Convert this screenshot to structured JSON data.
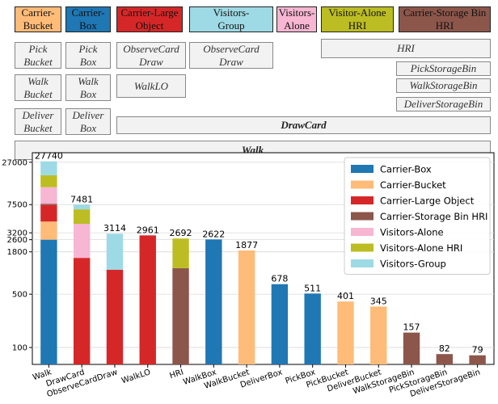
{
  "diagram": {
    "headers": [
      {
        "id": "carrier-bucket",
        "label": "Carrier-\nBucket",
        "color": "#ffbb78"
      },
      {
        "id": "carrier-box",
        "label": "Carrier-\nBox",
        "color": "#1f77b4"
      },
      {
        "id": "carrier-large-object",
        "label": "Carrier-Large\nObject",
        "color": "#d62728"
      },
      {
        "id": "visitors-group",
        "label": "Visitors-\nGroup",
        "color": "#9edae5"
      },
      {
        "id": "visitors-alone",
        "label": "Visitors-\nAlone",
        "color": "#f7b6d2"
      },
      {
        "id": "visitor-alone-hri",
        "label": "Visitor-Alone\nHRI",
        "color": "#bcbd22"
      },
      {
        "id": "carrier-storage-bin-hri",
        "label": "Carrier-Storage Bin\nHRI",
        "color": "#8c564b"
      }
    ],
    "tasks": [
      {
        "id": "pick-bucket",
        "label": "Pick\nBucket",
        "bold": false
      },
      {
        "id": "pick-box",
        "label": "Pick\nBox",
        "bold": false
      },
      {
        "id": "observecard-draw-1",
        "label": "ObserveCard\nDraw",
        "bold": false
      },
      {
        "id": "observecard-draw-2",
        "label": "ObserveCard\nDraw",
        "bold": false
      },
      {
        "id": "hri",
        "label": "HRI",
        "bold": false
      },
      {
        "id": "pickstoragebin",
        "label": "PickStorageBin",
        "bold": false
      },
      {
        "id": "walk-bucket",
        "label": "Walk\nBucket",
        "bold": false
      },
      {
        "id": "walk-box",
        "label": "Walk\nBox",
        "bold": false
      },
      {
        "id": "walklo",
        "label": "WalkLO",
        "bold": false
      },
      {
        "id": "walkstoragebin",
        "label": "WalkStorageBin",
        "bold": false
      },
      {
        "id": "deliverstoragebin",
        "label": "DeliverStorageBin",
        "bold": false
      },
      {
        "id": "deliver-bucket",
        "label": "Deliver\nBucket",
        "bold": false
      },
      {
        "id": "deliver-box",
        "label": "Deliver\nBox",
        "bold": false
      },
      {
        "id": "drawcard",
        "label": "DrawCard",
        "bold": true
      },
      {
        "id": "walk",
        "label": "Walk",
        "bold": true
      }
    ]
  },
  "chart_data": {
    "type": "bar",
    "stacked": true,
    "yscale": "log",
    "ylim": [
      60,
      36000
    ],
    "yticks": [
      100,
      500,
      1800,
      2600,
      3200,
      7500,
      27000
    ],
    "legend_position": "top-right",
    "categories": [
      "Walk",
      "DrawCard",
      "ObserveCardDraw",
      "WalkLO",
      "HRI",
      "WalkBox",
      "WalkBucket",
      "DeliverBox",
      "PickBox",
      "PickBucket",
      "DeliverBucket",
      "WalkStorageBin",
      "PickStorageBin",
      "DeliverStorageBin"
    ],
    "totals": [
      27740,
      7481,
      3114,
      2961,
      2692,
      2622,
      1877,
      678,
      511,
      401,
      345,
      157,
      82,
      79
    ],
    "series": [
      {
        "name": "Carrier-Box",
        "color": "#1f77b4",
        "values": [
          2600,
          0,
          0,
          0,
          0,
          2622,
          0,
          678,
          511,
          0,
          0,
          0,
          0,
          0
        ]
      },
      {
        "name": "Carrier-Bucket",
        "color": "#ffbb78",
        "values": [
          1900,
          0,
          0,
          0,
          0,
          0,
          1877,
          0,
          0,
          401,
          345,
          0,
          0,
          0
        ]
      },
      {
        "name": "Carrier-Large Object",
        "color": "#d62728",
        "values": [
          2900,
          1500,
          1050,
          2961,
          0,
          0,
          0,
          0,
          0,
          0,
          0,
          0,
          0,
          0
        ]
      },
      {
        "name": "Carrier-Storage Bin HRI",
        "color": "#8c564b",
        "values": [
          300,
          0,
          0,
          0,
          1100,
          0,
          0,
          0,
          0,
          0,
          0,
          157,
          82,
          79
        ]
      },
      {
        "name": "Visitors-Alone",
        "color": "#f7b6d2",
        "values": [
          5000,
          2700,
          0,
          0,
          0,
          0,
          0,
          0,
          0,
          0,
          0,
          0,
          0,
          0
        ]
      },
      {
        "name": "Visitors-Alone HRI",
        "color": "#bcbd22",
        "values": [
          5500,
          2300,
          0,
          0,
          1592,
          0,
          0,
          0,
          0,
          0,
          0,
          0,
          0,
          0
        ]
      },
      {
        "name": "Visitors-Group",
        "color": "#9edae5",
        "values": [
          9540,
          981,
          2064,
          0,
          0,
          0,
          0,
          0,
          0,
          0,
          0,
          0,
          0,
          0
        ]
      }
    ]
  }
}
